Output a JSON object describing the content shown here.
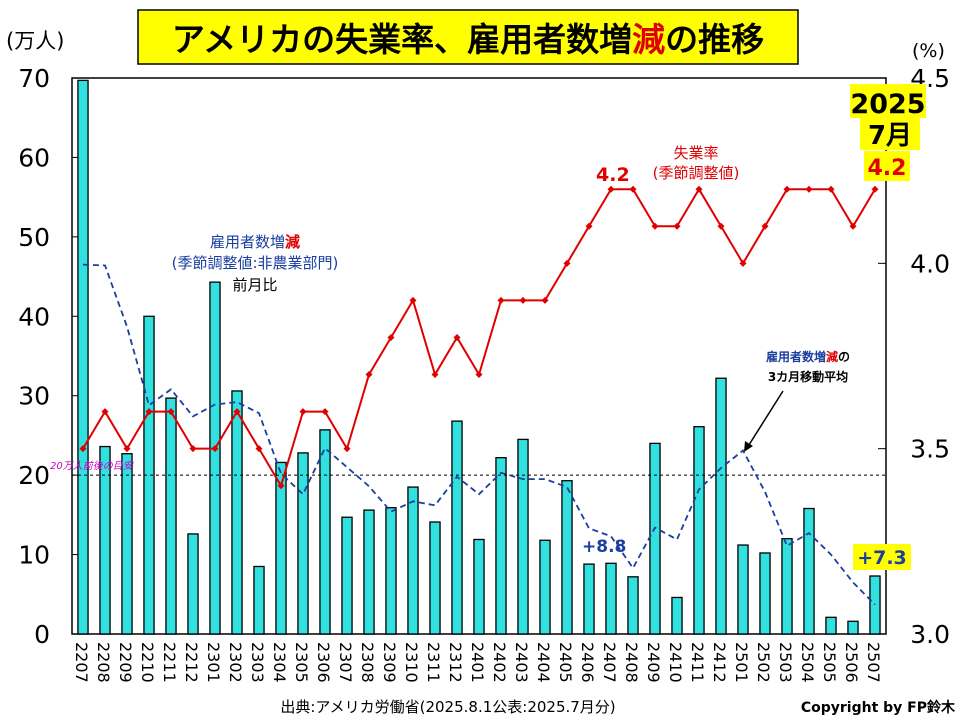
{
  "title": {
    "before": "アメリカの失業率、雇用者数増",
    "highlight": "減",
    "after": "の推移",
    "bg": "#ffff00",
    "highlight_color": "#e00000"
  },
  "left_unit": "(万人)",
  "right_unit": "(%)",
  "latest_callout": {
    "year": "2025",
    "month": "7月",
    "value": "4.2"
  },
  "labels": {
    "unemp_peak": "4.2",
    "unemp_series_line1": "失業率",
    "unemp_series_line2": "(季節調整値)",
    "bars_line1_pre": "雇用者数増",
    "bars_line1_hl": "減",
    "bars_line2": "(季節調整値:非農業部門)",
    "bars_line3": "前月比",
    "ma_line1_pre": "雇用者数増",
    "ma_line1_hl": "減",
    "ma_line1_post": "の",
    "ma_line2": "3カ月移動平均",
    "benchmark": "20万人前後の目安",
    "val_2406": "+8.8",
    "val_2507": "+7.3"
  },
  "footer": {
    "source": "出典:アメリカ労働省(2025.8.1公表:2025.7月分)",
    "copyright": "Copyright by FP鈴木"
  },
  "colors": {
    "bar": "#33e0e0",
    "unemp": "#e00000",
    "ma": "#1a3fa0",
    "benchmark_text": "#cc00cc",
    "val_text": "#1a3fa0"
  },
  "chart_data": {
    "type": "bar",
    "categories": [
      "2207",
      "2208",
      "2209",
      "2210",
      "2211",
      "2212",
      "2301",
      "2302",
      "2303",
      "2304",
      "2305",
      "2306",
      "2307",
      "2308",
      "2309",
      "2310",
      "2311",
      "2312",
      "2401",
      "2402",
      "2403",
      "2404",
      "2405",
      "2406",
      "2407",
      "2408",
      "2409",
      "2410",
      "2411",
      "2412",
      "2501",
      "2502",
      "2503",
      "2504",
      "2505",
      "2506",
      "2507"
    ],
    "series": [
      {
        "name": "雇用者数増減(季節調整値:非農業部門)前月比",
        "type": "bar",
        "axis": "left",
        "values": [
          69.7,
          23.6,
          22.7,
          40.0,
          29.7,
          12.6,
          44.3,
          30.6,
          8.5,
          21.6,
          22.8,
          25.7,
          14.7,
          15.6,
          15.9,
          18.5,
          14.1,
          26.8,
          11.9,
          22.2,
          24.5,
          11.8,
          19.3,
          8.8,
          8.9,
          7.2,
          24.0,
          4.6,
          26.1,
          32.2,
          11.2,
          10.2,
          12.0,
          15.8,
          2.1,
          1.6,
          7.3
        ]
      },
      {
        "name": "失業率(季節調整値)",
        "type": "line",
        "axis": "right",
        "values": [
          3.5,
          3.6,
          3.5,
          3.6,
          3.6,
          3.5,
          3.5,
          3.6,
          3.5,
          3.4,
          3.6,
          3.6,
          3.5,
          3.7,
          3.8,
          3.9,
          3.7,
          3.8,
          3.7,
          3.9,
          3.9,
          3.9,
          4.0,
          4.1,
          4.2,
          4.2,
          4.1,
          4.1,
          4.2,
          4.1,
          4.0,
          4.1,
          4.2,
          4.2,
          4.2,
          4.1,
          4.2
        ]
      },
      {
        "name": "雇用者数増減の3カ月移動平均",
        "type": "line",
        "axis": "left",
        "values": [
          46.5,
          46.4,
          38.7,
          28.8,
          30.8,
          27.4,
          28.9,
          29.2,
          27.8,
          20.2,
          17.6,
          23.4,
          21.0,
          18.6,
          15.4,
          16.7,
          16.2,
          19.8,
          17.6,
          20.3,
          19.5,
          19.5,
          18.5,
          13.3,
          12.3,
          8.3,
          13.4,
          11.9,
          18.2,
          20.9,
          23.1,
          17.9,
          11.1,
          12.7,
          10.0,
          6.5,
          3.7
        ]
      }
    ],
    "ylim_left": [
      0,
      70
    ],
    "yticks_left": [
      0,
      10,
      20,
      30,
      40,
      50,
      60,
      70
    ],
    "ylim_right": [
      3.0,
      4.5
    ],
    "yticks_right": [
      "3.0",
      "3.5",
      "4.0",
      "4.5"
    ],
    "reference_line": 20,
    "grid": false
  }
}
